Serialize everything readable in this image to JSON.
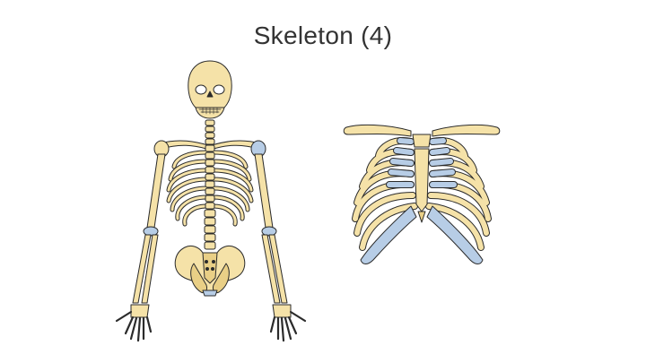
{
  "slide": {
    "title": "Skeleton (4)"
  },
  "colors": {
    "bone": "#f5e2a8",
    "bone_shade": "#e9cf86",
    "cartilage": "#b7cde6",
    "outline": "#2b2b2b",
    "title_text": "#333333"
  },
  "illustrations": {
    "left": "full-skeleton-upper-body",
    "right": "rib-cage-with-clavicles"
  }
}
